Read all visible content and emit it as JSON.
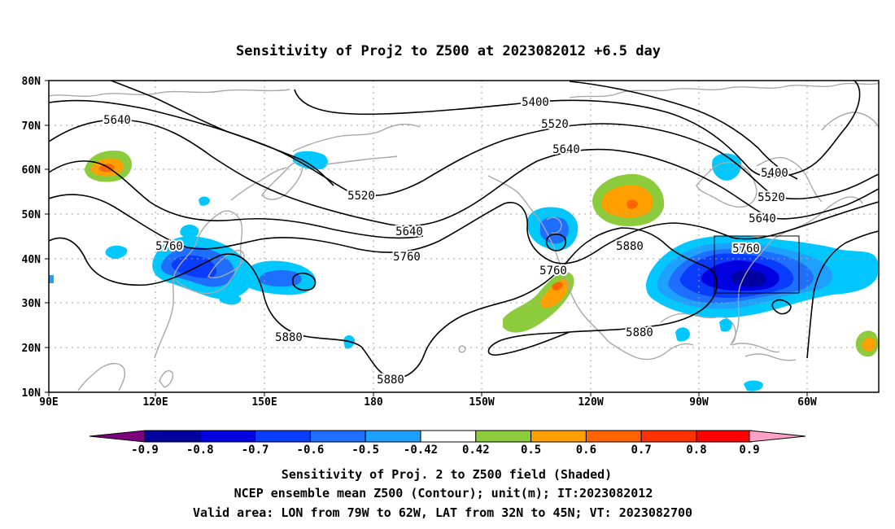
{
  "map": {
    "title": "Sensitivity of Proj2 to Z500 at 2023082012 +6.5 day",
    "lat_ticks": [
      "80N",
      "70N",
      "60N",
      "50N",
      "40N",
      "30N",
      "20N",
      "10N"
    ],
    "lon_ticks": [
      "90E",
      "120E",
      "150E",
      "180",
      "150W",
      "120W",
      "90W",
      "60W"
    ],
    "contour_labels": [
      {
        "text": "5640",
        "id": "5640-west"
      },
      {
        "text": "5760",
        "id": "5760-west"
      },
      {
        "text": "5880",
        "id": "5880-pacific"
      },
      {
        "text": "5880",
        "id": "5880-south"
      },
      {
        "text": "5520",
        "id": "5520-pacific"
      },
      {
        "text": "5640",
        "id": "5640-pacific"
      },
      {
        "text": "5760",
        "id": "5760-pacific"
      },
      {
        "text": "5400",
        "id": "5400-north"
      },
      {
        "text": "5520",
        "id": "5520-north"
      },
      {
        "text": "5640",
        "id": "5640-north"
      },
      {
        "text": "5760",
        "id": "5760-coast"
      },
      {
        "text": "5880",
        "id": "5880-na"
      },
      {
        "text": "5880",
        "id": "5880-gulf"
      },
      {
        "text": "5400",
        "id": "5400-east"
      },
      {
        "text": "5520",
        "id": "5520-east"
      },
      {
        "text": "5640",
        "id": "5640-east"
      },
      {
        "text": "5760",
        "id": "5760-east"
      }
    ],
    "validation_box": {
      "lon_from": "79W",
      "lon_to": "62W",
      "lat_from": "32N",
      "lat_to": "45N"
    }
  },
  "colorbar": {
    "labels": [
      "-0.9",
      "-0.8",
      "-0.7",
      "-0.6",
      "-0.5",
      "-0.42",
      "0.42",
      "0.5",
      "0.6",
      "0.7",
      "0.8",
      "0.9"
    ],
    "colors": [
      "#7d007d",
      "#0000a0",
      "#0000e0",
      "#0a3cff",
      "#1e6eff",
      "#1ea0ff",
      "#00c8ff",
      "#ffffff",
      "#8ccc3c",
      "#ffa000",
      "#ff6400",
      "#ff3200",
      "#ff0000",
      "#ffa0c8"
    ]
  },
  "captions": [
    "Sensitivity of Proj. 2 to Z500 field (Shaded)",
    "NCEP ensemble mean Z500 (Contour); unit(m); IT:2023082012",
    "Valid area: LON from 79W to 62W, LAT from 32N to 45N; VT: 2023082700"
  ]
}
